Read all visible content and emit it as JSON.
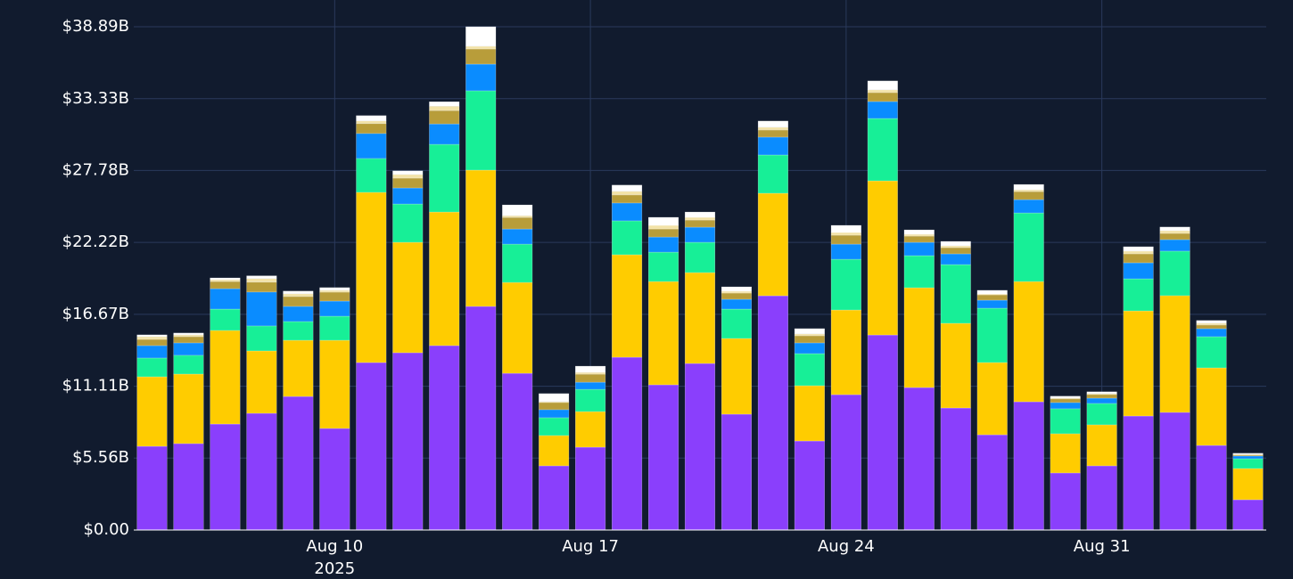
{
  "chart_data": {
    "type": "stacked_bar",
    "x": [
      "2025-08-05",
      "2025-08-06",
      "2025-08-07",
      "2025-08-08",
      "2025-08-09",
      "2025-08-10",
      "2025-08-11",
      "2025-08-12",
      "2025-08-13",
      "2025-08-14",
      "2025-08-15",
      "2025-08-16",
      "2025-08-17",
      "2025-08-18",
      "2025-08-19",
      "2025-08-20",
      "2025-08-21",
      "2025-08-22",
      "2025-08-23",
      "2025-08-24",
      "2025-08-25",
      "2025-08-26",
      "2025-08-27",
      "2025-08-28",
      "2025-08-29",
      "2025-08-30",
      "2025-08-31",
      "2025-09-01",
      "2025-09-02",
      "2025-09-03",
      "2025-09-04"
    ],
    "series": [
      {
        "color": "#8a3ffc",
        "values": [
          6.47,
          6.68,
          8.19,
          9.02,
          10.32,
          7.85,
          12.94,
          13.7,
          14.25,
          17.28,
          12.11,
          4.96,
          6.4,
          13.35,
          11.22,
          12.87,
          8.95,
          18.1,
          6.88,
          10.46,
          15.07,
          11.01,
          9.43,
          7.36,
          9.91,
          4.41,
          4.96,
          8.81,
          9.09,
          6.54,
          2.34
        ]
      },
      {
        "color": "#ffcc00",
        "values": [
          5.37,
          5.37,
          7.23,
          4.82,
          4.34,
          6.81,
          13.15,
          8.53,
          10.32,
          10.53,
          7.02,
          2.34,
          2.75,
          7.92,
          7.98,
          7.02,
          5.85,
          7.92,
          4.27,
          6.54,
          11.91,
          7.71,
          6.54,
          5.58,
          9.29,
          3.03,
          3.17,
          8.12,
          9.02,
          5.99,
          2.41
        ]
      },
      {
        "color": "#17ef97",
        "values": [
          1.45,
          1.45,
          1.65,
          1.93,
          1.45,
          1.86,
          2.62,
          2.96,
          5.23,
          6.13,
          2.96,
          1.38,
          1.72,
          2.62,
          2.27,
          2.34,
          2.27,
          2.96,
          2.48,
          3.92,
          4.82,
          2.48,
          4.54,
          4.2,
          5.3,
          1.93,
          1.65,
          2.48,
          3.44,
          2.41,
          0.76
        ]
      },
      {
        "color": "#0a8cff",
        "values": [
          0.96,
          0.96,
          1.58,
          2.62,
          1.17,
          1.17,
          1.93,
          1.24,
          1.58,
          2.06,
          1.17,
          0.62,
          0.55,
          1.38,
          1.17,
          1.17,
          0.76,
          1.38,
          0.83,
          1.17,
          1.31,
          1.03,
          0.83,
          0.62,
          1.03,
          0.48,
          0.41,
          1.24,
          0.89,
          0.62,
          0.21
        ]
      },
      {
        "color": "#b89d3a",
        "values": [
          0.48,
          0.48,
          0.55,
          0.76,
          0.76,
          0.69,
          0.76,
          0.76,
          1.03,
          1.17,
          0.89,
          0.55,
          0.62,
          0.62,
          0.62,
          0.55,
          0.48,
          0.55,
          0.55,
          0.69,
          0.69,
          0.48,
          0.48,
          0.41,
          0.62,
          0.28,
          0.28,
          0.69,
          0.48,
          0.28,
          0.07
        ]
      },
      {
        "color": "#f3e3a8",
        "values": [
          0.21,
          0.14,
          0.14,
          0.28,
          0.21,
          0.14,
          0.21,
          0.28,
          0.34,
          0.21,
          0.14,
          0.07,
          0.14,
          0.28,
          0.28,
          0.21,
          0.14,
          0.21,
          0.14,
          0.21,
          0.21,
          0.14,
          0.14,
          0.07,
          0.14,
          0.07,
          0.07,
          0.21,
          0.21,
          0.14,
          0.07
        ]
      },
      {
        "color": "#ffffff",
        "values": [
          0.14,
          0.14,
          0.14,
          0.21,
          0.21,
          0.21,
          0.41,
          0.28,
          0.34,
          1.51,
          0.83,
          0.62,
          0.48,
          0.48,
          0.62,
          0.41,
          0.34,
          0.48,
          0.41,
          0.55,
          0.69,
          0.34,
          0.34,
          0.28,
          0.41,
          0.14,
          0.14,
          0.34,
          0.28,
          0.21,
          0.07
        ]
      }
    ],
    "ylim": [
      0,
      38.89
    ],
    "yticks": [
      {
        "value": 0,
        "label": "$0.00"
      },
      {
        "value": 5.56,
        "label": "$5.56B"
      },
      {
        "value": 11.11,
        "label": "$11.11B"
      },
      {
        "value": 16.67,
        "label": "$16.67B"
      },
      {
        "value": 22.22,
        "label": "$22.22B"
      },
      {
        "value": 27.78,
        "label": "$27.78B"
      },
      {
        "value": 33.33,
        "label": "$33.33B"
      },
      {
        "value": 38.89,
        "label": "$38.89B"
      }
    ],
    "xticks": [
      {
        "value": "2025-08-10",
        "label": "Aug 10\n2025"
      },
      {
        "value": "2025-08-17",
        "label": "Aug 17"
      },
      {
        "value": "2025-08-24",
        "label": "Aug 24"
      },
      {
        "value": "2025-08-31",
        "label": "Aug 31"
      }
    ],
    "grid": true
  }
}
